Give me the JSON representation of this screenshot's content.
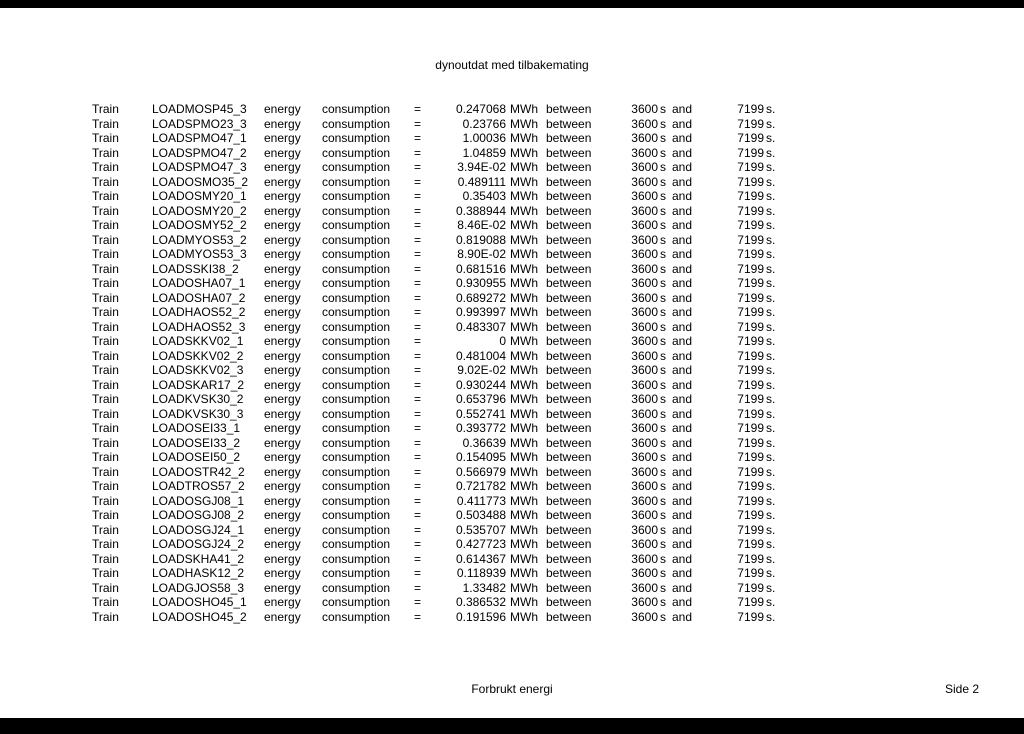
{
  "title": "dynoutdat med tilbakemating",
  "footer_center": "Forbrukt energi",
  "footer_right": "Side 2",
  "col_labels": {
    "label": "Train",
    "energy": "energy",
    "consumption": "consumption",
    "eq": "=",
    "unit": "MWh",
    "between": "between",
    "t1": "3600",
    "s": "s",
    "and": "and",
    "t2": "7199",
    "s2": "s."
  },
  "rows": [
    {
      "id": "LOADMOSP45_3",
      "val": "0.247068"
    },
    {
      "id": "LOADSPMO23_3",
      "val": "0.23766"
    },
    {
      "id": "LOADSPMO47_1",
      "val": "1.00036"
    },
    {
      "id": "LOADSPMO47_2",
      "val": "1.04859"
    },
    {
      "id": "LOADSPMO47_3",
      "val": "3.94E-02"
    },
    {
      "id": "LOADOSMO35_2",
      "val": "0.489111"
    },
    {
      "id": "LOADOSMY20_1",
      "val": "0.35403"
    },
    {
      "id": "LOADOSMY20_2",
      "val": "0.388944"
    },
    {
      "id": "LOADOSMY52_2",
      "val": "8.46E-02"
    },
    {
      "id": "LOADMYOS53_2",
      "val": "0.819088"
    },
    {
      "id": "LOADMYOS53_3",
      "val": "8.90E-02"
    },
    {
      "id": "LOADSSKI38_2",
      "val": "0.681516"
    },
    {
      "id": "LOADOSHA07_1",
      "val": "0.930955"
    },
    {
      "id": "LOADOSHA07_2",
      "val": "0.689272"
    },
    {
      "id": "LOADHAOS52_2",
      "val": "0.993997"
    },
    {
      "id": "LOADHAOS52_3",
      "val": "0.483307"
    },
    {
      "id": "LOADSKKV02_1",
      "val": "0"
    },
    {
      "id": "LOADSKKV02_2",
      "val": "0.481004"
    },
    {
      "id": "LOADSKKV02_3",
      "val": "9.02E-02"
    },
    {
      "id": "LOADSKAR17_2",
      "val": "0.930244"
    },
    {
      "id": "LOADKVSK30_2",
      "val": "0.653796"
    },
    {
      "id": "LOADKVSK30_3",
      "val": "0.552741"
    },
    {
      "id": "LOADOSEI33_1",
      "val": "0.393772"
    },
    {
      "id": "LOADOSEI33_2",
      "val": "0.36639"
    },
    {
      "id": "LOADOSEI50_2",
      "val": "0.154095"
    },
    {
      "id": "LOADOSTR42_2",
      "val": "0.566979"
    },
    {
      "id": "LOADTROS57_2",
      "val": "0.721782"
    },
    {
      "id": "LOADOSGJ08_1",
      "val": "0.411773"
    },
    {
      "id": "LOADOSGJ08_2",
      "val": "0.503488"
    },
    {
      "id": "LOADOSGJ24_1",
      "val": "0.535707"
    },
    {
      "id": "LOADOSGJ24_2",
      "val": "0.427723"
    },
    {
      "id": "LOADSKHA41_2",
      "val": "0.614367"
    },
    {
      "id": "LOADHASK12_2",
      "val": "0.118939"
    },
    {
      "id": "LOADGJOS58_3",
      "val": "1.33482"
    },
    {
      "id": "LOADOSHO45_1",
      "val": "0.386532"
    },
    {
      "id": "LOADOSHO45_2",
      "val": "0.191596"
    }
  ]
}
